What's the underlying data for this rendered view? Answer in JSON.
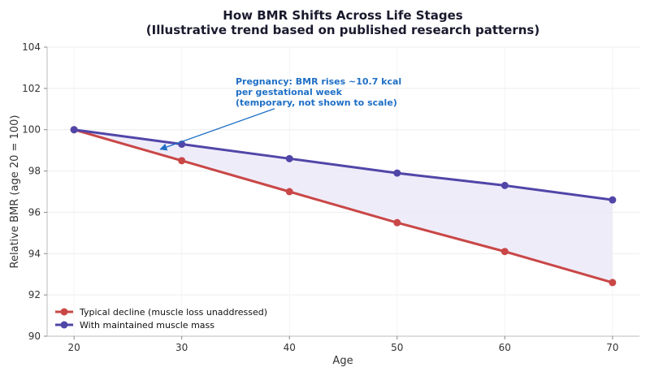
{
  "chart_data": {
    "type": "line",
    "title": "How BMR Shifts Across Life Stages",
    "subtitle": "(Illustrative trend based on published research patterns)",
    "xlabel": "Age",
    "ylabel": "Relative BMR (age 20 = 100)",
    "xlim": [
      17.5,
      72.5
    ],
    "ylim": [
      90,
      104
    ],
    "x_ticks": [
      20,
      30,
      40,
      50,
      60,
      70
    ],
    "y_ticks": [
      90,
      92,
      94,
      96,
      98,
      100,
      102,
      104
    ],
    "grid": true,
    "legend_position": "bottom-left",
    "x": [
      20,
      30,
      40,
      50,
      60,
      70
    ],
    "series": [
      {
        "name": "Typical decline (muscle loss unaddressed)",
        "color": "#c94747",
        "values": [
          100,
          98.5,
          97,
          95.5,
          94.1,
          92.6
        ]
      },
      {
        "name": "With maintained muscle mass",
        "color": "#5046a8",
        "values": [
          100,
          99.3,
          98.6,
          97.9,
          97.3,
          96.6
        ]
      }
    ],
    "fill_between": {
      "color": "#ece9f8"
    },
    "annotation": {
      "lines": [
        "Pregnancy: BMR rises ~10.7 kcal",
        "per gestational week",
        "(temporary, not shown to scale)"
      ],
      "color": "#1f6fc5",
      "text_at": {
        "x": 35,
        "y": 102.2
      },
      "arrow_to": {
        "x": 28,
        "y": 99.05
      }
    }
  }
}
